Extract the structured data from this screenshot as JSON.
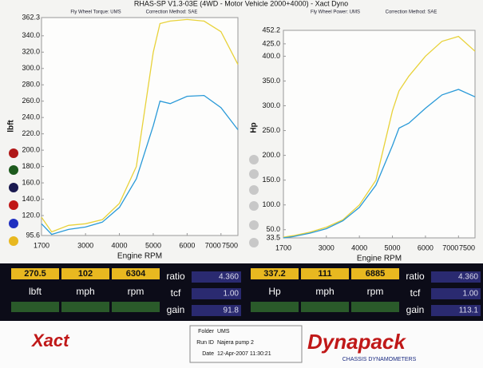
{
  "header": {
    "title": "RHAS-SP V1.3-03E  (4WD - Motor Vehicle 2000+4000) - Xact Dyno"
  },
  "chart_data": [
    {
      "type": "line",
      "title": "Fly Wheel Torque: UMS",
      "subtitle": "Correction Method: SAE",
      "y_label": "lbft",
      "x_label": "Engine RPM",
      "x": [
        1700,
        2000,
        2500,
        3000,
        3500,
        4000,
        4500,
        5000,
        5200,
        5500,
        6000,
        6500,
        7000,
        7500
      ],
      "series": [
        {
          "color": "#e8d23a",
          "values": [
            118,
            100,
            108,
            110,
            115,
            135,
            180,
            320,
            355,
            358,
            360,
            358,
            345,
            305
          ]
        },
        {
          "color": "#2a9ad8",
          "values": [
            110,
            97,
            103,
            106,
            112,
            130,
            165,
            230,
            260,
            257,
            266,
            267,
            252,
            225
          ]
        }
      ],
      "xlim": [
        1700,
        7500
      ],
      "xticks": [
        1700,
        3000,
        4000,
        5000,
        6000,
        7000,
        7500
      ],
      "ylim": [
        95.6,
        362.3
      ],
      "yticks": [
        95.6,
        {
          "value": 120,
          "label": "120.0"
        },
        {
          "value": 140,
          "label": "140.0"
        },
        {
          "value": 160,
          "label": "160.0"
        },
        {
          "value": 180,
          "label": "180.0"
        },
        {
          "value": 200,
          "label": "200.0"
        },
        {
          "value": 220,
          "label": "220.0"
        },
        {
          "value": 240,
          "label": "240.0"
        },
        {
          "value": 260,
          "label": "260.0"
        },
        {
          "value": 280,
          "label": "280.0"
        },
        {
          "value": 300,
          "label": "300.0"
        },
        {
          "value": 320,
          "label": "320.0"
        },
        {
          "value": 340,
          "label": "340.0"
        },
        362.3
      ]
    },
    {
      "type": "line",
      "title": "Fly Wheel Power: UMS",
      "subtitle": "Correction Method: SAE",
      "y_label": "Hp",
      "x_label": "Engine RPM",
      "x": [
        1700,
        2000,
        2500,
        3000,
        3500,
        4000,
        4500,
        5000,
        5200,
        5500,
        6000,
        6500,
        7000,
        7500
      ],
      "series": [
        {
          "color": "#e8d23a",
          "values": [
            35,
            38,
            45,
            55,
            70,
            100,
            150,
            290,
            330,
            360,
            400,
            430,
            440,
            410
          ]
        },
        {
          "color": "#2a9ad8",
          "values": [
            33.5,
            36,
            43,
            52,
            68,
            95,
            140,
            220,
            255,
            265,
            295,
            322,
            333,
            318
          ]
        }
      ],
      "xlim": [
        1700,
        7500
      ],
      "xticks": [
        1700,
        3000,
        4000,
        5000,
        6000,
        7000,
        7500
      ],
      "ylim": [
        33.5,
        452.2
      ],
      "yticks": [
        33.5,
        {
          "value": 50,
          "label": "50.0"
        },
        {
          "value": 100,
          "label": "100.0"
        },
        {
          "value": 150,
          "label": "150.0"
        },
        {
          "value": 200,
          "label": "200.0"
        },
        {
          "value": 250,
          "label": "250.0"
        },
        {
          "value": 300,
          "label": "300.0"
        },
        {
          "value": 350,
          "label": "350.0"
        },
        {
          "value": 400,
          "label": "400.0"
        },
        {
          "value": 425,
          "label": "425.0"
        },
        452.2
      ]
    }
  ],
  "panels": [
    {
      "readouts": [
        {
          "value": "270.5",
          "unit": "lbft"
        },
        {
          "value": "102",
          "unit": "mph"
        },
        {
          "value": "6304",
          "unit": "rpm"
        }
      ],
      "stats": [
        {
          "label": "ratio",
          "value": "4.360"
        },
        {
          "label": "tcf",
          "value": "1.00"
        },
        {
          "label": "gain",
          "value": "91.8"
        }
      ]
    },
    {
      "readouts": [
        {
          "value": "337.2",
          "unit": "Hp"
        },
        {
          "value": "111",
          "unit": "mph"
        },
        {
          "value": "6885",
          "unit": "rpm"
        }
      ],
      "stats": [
        {
          "label": "ratio",
          "value": "4.360"
        },
        {
          "label": "tcf",
          "value": "1.00"
        },
        {
          "label": "gain",
          "value": "113.1"
        }
      ]
    }
  ],
  "footer": {
    "fields": [
      {
        "label": "Folder",
        "value": "UMS"
      },
      {
        "label": "Run ID",
        "value": "Najera pump 2"
      },
      {
        "label": "Date",
        "value": "12-Apr-2007  11:30:21"
      }
    ],
    "left_logo": "Xact",
    "brand": "Dynapack",
    "brand_tagline": "CHASSIS DYNAMOMETERS"
  }
}
